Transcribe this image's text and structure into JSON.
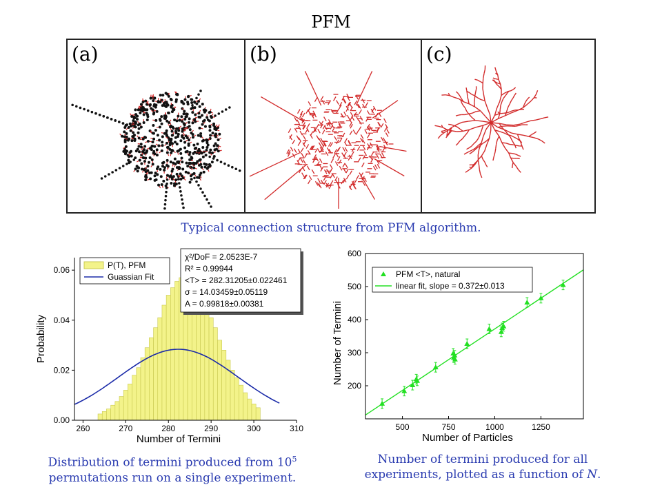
{
  "title": "PFM",
  "panels": [
    {
      "label": "(a)"
    },
    {
      "label": "(b)"
    },
    {
      "label": "(c)"
    }
  ],
  "captions": {
    "top": "Typical connection structure from PFM algorithm.",
    "left_line1_pre": "Distribution of termini produced from 10",
    "left_line1_sup": "5",
    "left_line2": "permutations run on a single experiment.",
    "right_line1": "Number of termini produced for all",
    "right_line2_pre": "experiments, plotted as a function of ",
    "right_line2_var": "N",
    "right_line2_post": "."
  },
  "colors": {
    "histogram_fill": "#f3f38a",
    "histogram_edge": "#c8c850",
    "gaussian_line": "#1a2aa8",
    "scatter": "#22e022",
    "network_red": "#d22a2a",
    "caption_blue": "#2a3bb0"
  },
  "stats_box": {
    "lines": [
      "χ²/DoF  = 2.0523E-7",
      "R²        = 0.99944",
      "<T> = 282.31205±0.022461",
      "σ  = 14.03459±0.05119",
      "A  = 0.99818±0.00381"
    ]
  },
  "chart_data": [
    {
      "type": "bar",
      "xlabel": "Number of Termini",
      "ylabel": "Probability",
      "xlim": [
        258,
        310
      ],
      "ylim": [
        0,
        0.065
      ],
      "xticks": [
        260,
        270,
        280,
        290,
        300,
        310
      ],
      "yticks": [
        0.0,
        0.02,
        0.04,
        0.06
      ],
      "ytick_labels": [
        "0.00",
        "0.02",
        "0.04",
        "0.06"
      ],
      "legend": [
        "P(T), PFM",
        "Guassian Fit"
      ],
      "legend_position": "top-left",
      "gaussian": {
        "mean": 282.31205,
        "sigma": 14.03459,
        "amplitude": 0.99818
      },
      "bins_x": [
        264,
        265,
        266,
        267,
        268,
        269,
        270,
        271,
        272,
        273,
        274,
        275,
        276,
        277,
        278,
        279,
        280,
        281,
        282,
        283,
        284,
        285,
        286,
        287,
        288,
        289,
        290,
        291,
        292,
        293,
        294,
        295,
        296,
        297,
        298,
        299,
        300,
        301
      ],
      "bins_y": [
        0.0025,
        0.0035,
        0.0045,
        0.006,
        0.0075,
        0.0095,
        0.012,
        0.0145,
        0.018,
        0.021,
        0.025,
        0.029,
        0.033,
        0.037,
        0.041,
        0.046,
        0.05,
        0.053,
        0.0555,
        0.057,
        0.0575,
        0.0565,
        0.0545,
        0.052,
        0.049,
        0.045,
        0.041,
        0.037,
        0.032,
        0.028,
        0.024,
        0.02,
        0.017,
        0.014,
        0.011,
        0.0085,
        0.0065,
        0.005
      ]
    },
    {
      "type": "scatter",
      "xlabel": "Number of Particles",
      "ylabel": "Number of Termini",
      "xlim": [
        300,
        1480
      ],
      "ylim": [
        100,
        600
      ],
      "xticks": [
        500,
        750,
        1000,
        1250
      ],
      "yticks": [
        200,
        300,
        400,
        500,
        600
      ],
      "legend": [
        "PFM <T>, natural",
        "linear fit, slope = 0.372±0.013"
      ],
      "legend_position": "top-left",
      "fit": {
        "slope": 0.372,
        "intercept": 0
      },
      "points": [
        {
          "x": 390,
          "y": 146
        },
        {
          "x": 510,
          "y": 184
        },
        {
          "x": 555,
          "y": 202
        },
        {
          "x": 575,
          "y": 220
        },
        {
          "x": 580,
          "y": 215
        },
        {
          "x": 680,
          "y": 256
        },
        {
          "x": 775,
          "y": 298
        },
        {
          "x": 778,
          "y": 285
        },
        {
          "x": 783,
          "y": 292
        },
        {
          "x": 785,
          "y": 280
        },
        {
          "x": 850,
          "y": 327
        },
        {
          "x": 970,
          "y": 372
        },
        {
          "x": 1035,
          "y": 363
        },
        {
          "x": 1040,
          "y": 375
        },
        {
          "x": 1048,
          "y": 380
        },
        {
          "x": 1175,
          "y": 452
        },
        {
          "x": 1250,
          "y": 465
        },
        {
          "x": 1370,
          "y": 505
        }
      ]
    }
  ]
}
